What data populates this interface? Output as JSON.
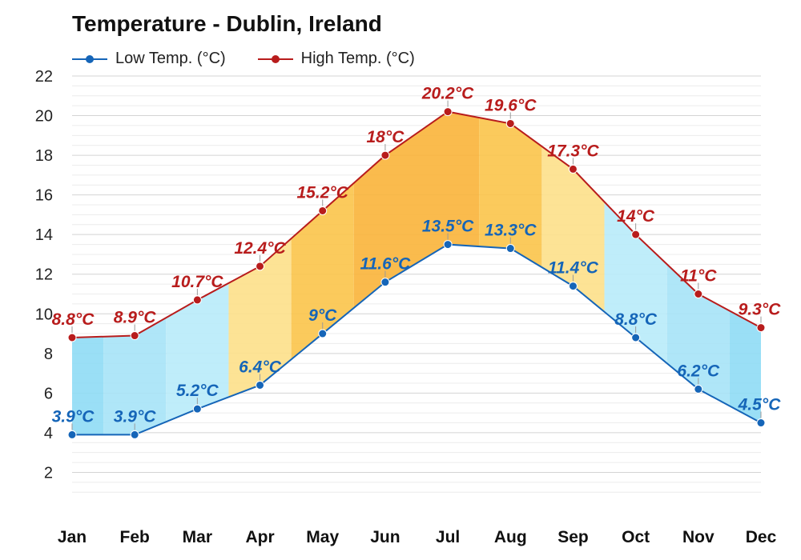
{
  "chart_data": {
    "type": "line",
    "title": "Temperature - Dublin, Ireland",
    "categories": [
      "Jan",
      "Feb",
      "Mar",
      "Apr",
      "May",
      "Jun",
      "Jul",
      "Aug",
      "Sep",
      "Oct",
      "Nov",
      "Dec"
    ],
    "series": [
      {
        "name": "Low Temp. (°C)",
        "color": "#1565b8",
        "values": [
          3.9,
          3.9,
          5.2,
          6.4,
          9,
          11.6,
          13.5,
          13.3,
          11.4,
          8.8,
          6.2,
          4.5
        ],
        "labels": [
          "3.9°C",
          "3.9°C",
          "5.2°C",
          "6.4°C",
          "9°C",
          "11.6°C",
          "13.5°C",
          "13.3°C",
          "11.4°C",
          "8.8°C",
          "6.2°C",
          "4.5°C"
        ]
      },
      {
        "name": "High Temp. (°C)",
        "color": "#b81c1c",
        "values": [
          8.8,
          8.9,
          10.7,
          12.4,
          15.2,
          18,
          20.2,
          19.6,
          17.3,
          14,
          11,
          9.3
        ],
        "labels": [
          "8.8°C",
          "8.9°C",
          "10.7°C",
          "12.4°C",
          "15.2°C",
          "18°C",
          "20.2°C",
          "19.6°C",
          "17.3°C",
          "14°C",
          "11°C",
          "9.3°C"
        ]
      }
    ],
    "ylim": [
      0,
      22
    ],
    "yticks": [
      2,
      4,
      6,
      8,
      10,
      12,
      14,
      16,
      18,
      20,
      22
    ],
    "grid": true,
    "legend_position": "top-left",
    "band_colors": [
      "#8fdcf5",
      "#a6e3f7",
      "#b8ebfa",
      "#fde08a",
      "#fbc44a",
      "#f9b43a",
      "#f9b43a",
      "#fbc44a",
      "#fde08a",
      "#b8ebfa",
      "#a6e3f7",
      "#8fdcf5"
    ]
  }
}
